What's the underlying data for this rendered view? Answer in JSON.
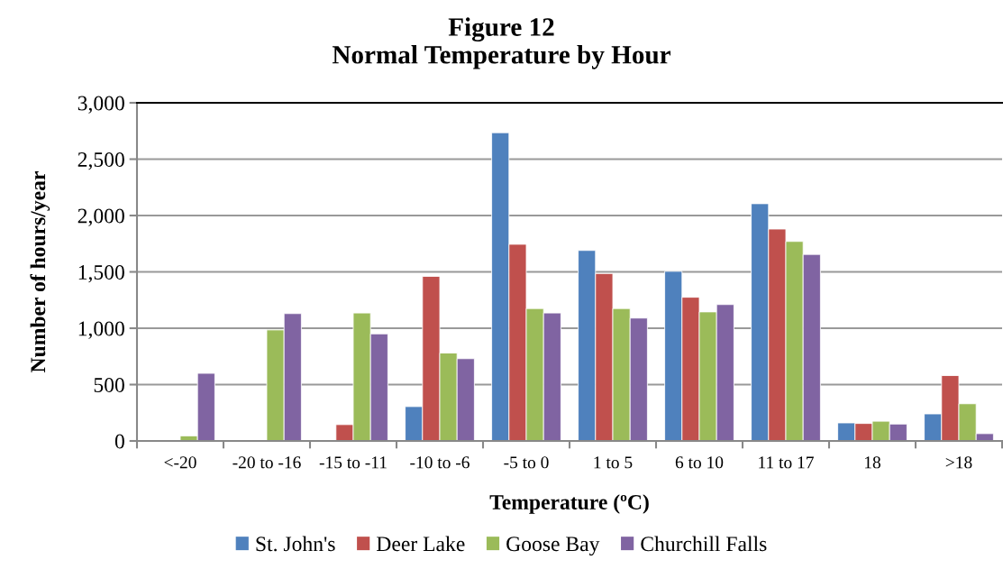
{
  "chart_data": {
    "type": "bar",
    "title": "Figure 12\nNormal Temperature by Hour",
    "xlabel": "Temperature (ºC)",
    "ylabel": "Number of hours/year",
    "categories": [
      "<-20",
      "-20 to -16",
      "-15 to -11",
      "-10 to -6",
      "-5 to 0",
      "1 to 5",
      "6 to 10",
      "11 to 17",
      "18",
      ">18"
    ],
    "series": [
      {
        "name": "St. John's",
        "color": "#4f81bd",
        "values": [
          null,
          null,
          null,
          305,
          2735,
          1690,
          1505,
          2105,
          160,
          240
        ]
      },
      {
        "name": "Deer Lake",
        "color": "#c0504d",
        "values": [
          null,
          null,
          145,
          1460,
          1745,
          1485,
          1275,
          1880,
          155,
          580
        ]
      },
      {
        "name": "Goose Bay",
        "color": "#9bbb59",
        "values": [
          45,
          985,
          1135,
          780,
          1175,
          1175,
          1145,
          1770,
          175,
          330
        ]
      },
      {
        "name": "Churchill Falls",
        "color": "#8064a2",
        "values": [
          600,
          1130,
          950,
          730,
          1135,
          1090,
          1210,
          1655,
          150,
          65
        ]
      }
    ],
    "ylim": [
      0,
      3000
    ],
    "yticks": [
      {
        "value": 0,
        "label": "0"
      },
      {
        "value": 500,
        "label": "500"
      },
      {
        "value": 1000,
        "label": "1,000"
      },
      {
        "value": 1500,
        "label": "1,500"
      },
      {
        "value": 2000,
        "label": "2,000"
      },
      {
        "value": 2500,
        "label": "2,500"
      },
      {
        "value": 3000,
        "label": "3,000"
      }
    ],
    "grid": "y",
    "legend": "bottom"
  }
}
